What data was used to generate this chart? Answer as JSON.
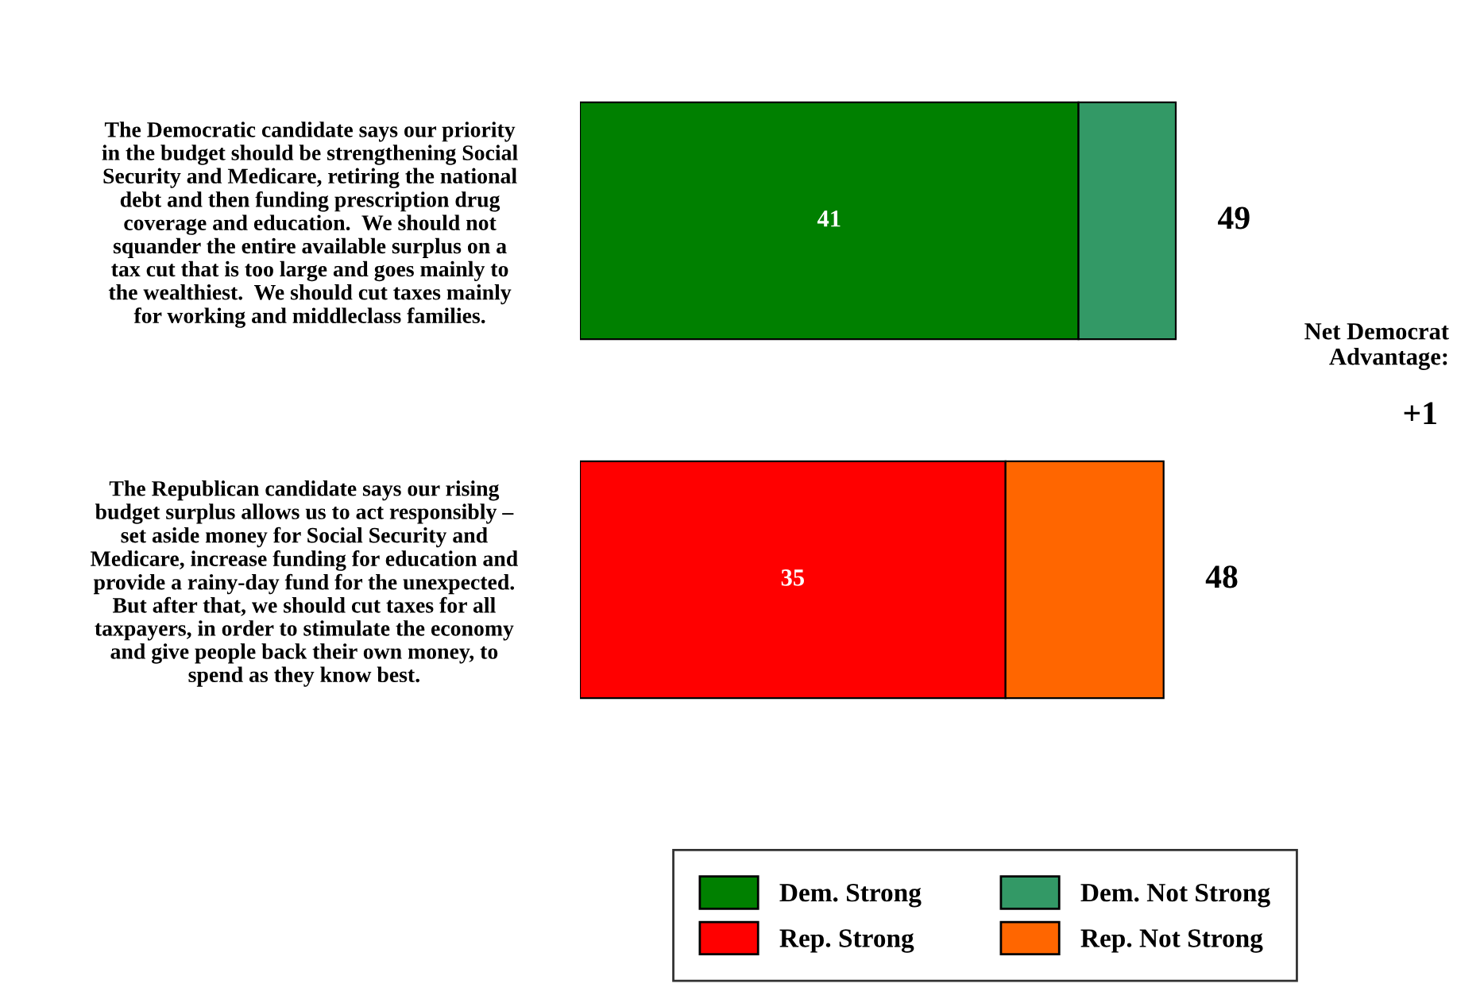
{
  "chart_data": {
    "type": "bar",
    "orientation": "horizontal",
    "stacked": true,
    "categories": [
      "The Democratic candidate says our priority\nin the budget should be strengthening Social\nSecurity and Medicare, retiring the national\ndebt and then funding prescription drug\ncoverage and education.  We should not\nsquander the entire available surplus on a\ntax cut that is too large and goes mainly to\nthe wealthiest.  We should cut taxes mainly\nfor working and middleclass families.",
      "The Republican candidate says our rising\nbudget surplus allows us to act responsibly –\nset aside money for Social Security and\nMedicare, increase funding for education and\nprovide a rainy-day fund for the unexpected.\nBut after that, we should cut taxes for all\ntaxpayers, in order to stimulate the economy\nand give people back their own money, to\nspend as they know best."
    ],
    "series": [
      {
        "name": "Dem. Strong",
        "color": "#008000",
        "values": [
          41,
          null
        ],
        "value_labels": [
          "41",
          null
        ]
      },
      {
        "name": "Dem. Not Strong",
        "color": "#339966",
        "values": [
          8,
          null
        ]
      },
      {
        "name": "Rep. Strong",
        "color": "#ff0000",
        "values": [
          null,
          35
        ],
        "value_labels": [
          null,
          "35"
        ]
      },
      {
        "name": "Rep. Not Strong",
        "color": "#ff6600",
        "values": [
          null,
          13
        ]
      }
    ],
    "totals": [
      "49",
      "48"
    ],
    "legend": "bottom",
    "grid": false,
    "annotations": [
      "Net Democrat\nAdvantage:",
      "+1"
    ]
  }
}
